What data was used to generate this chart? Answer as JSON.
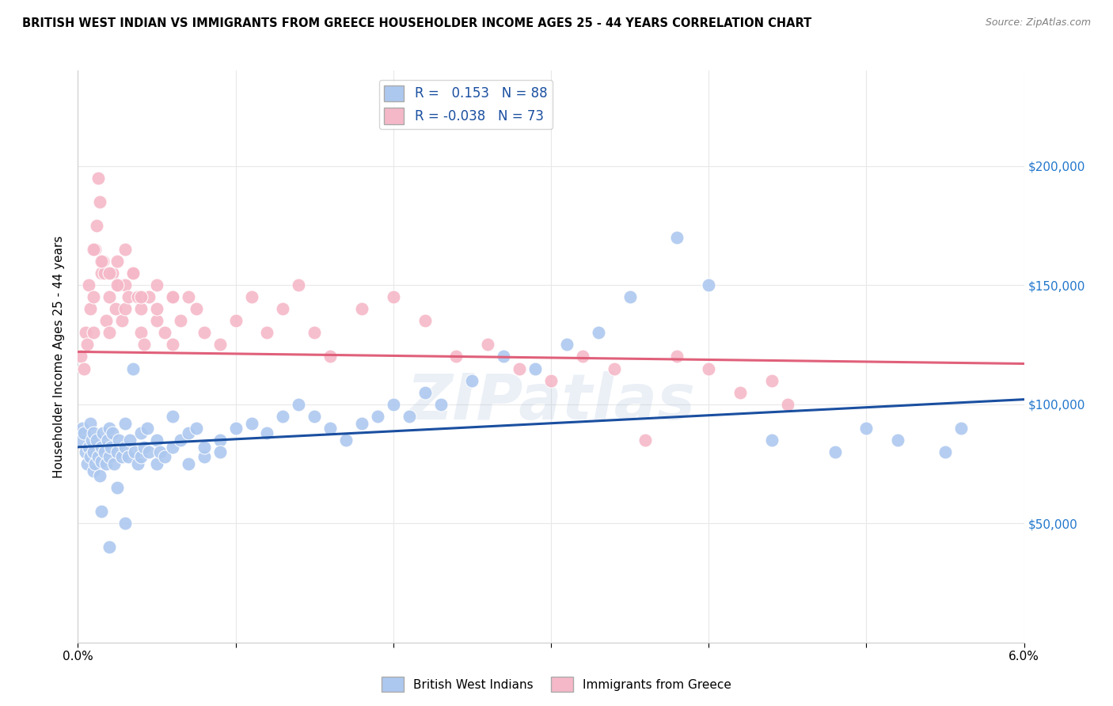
{
  "title": "BRITISH WEST INDIAN VS IMMIGRANTS FROM GREECE HOUSEHOLDER INCOME AGES 25 - 44 YEARS CORRELATION CHART",
  "source": "Source: ZipAtlas.com",
  "ylabel": "Householder Income Ages 25 - 44 years",
  "xlim": [
    0.0,
    0.06
  ],
  "ylim": [
    0,
    240000
  ],
  "blue_R": 0.153,
  "blue_N": 88,
  "pink_R": -0.038,
  "pink_N": 73,
  "blue_color": "#adc8ef",
  "pink_color": "#f5b8c8",
  "blue_line_color": "#1a4fa0",
  "pink_line_color": "#e0607a",
  "legend_label_blue": "British West Indians",
  "legend_label_pink": "Immigrants from Greece",
  "watermark": "ZIPatlas",
  "background_color": "#ffffff",
  "grid_color": "#e8e8e8",
  "blue_x": [
    0.0002,
    0.0003,
    0.0004,
    0.0005,
    0.0006,
    0.0007,
    0.0008,
    0.0008,
    0.0009,
    0.001,
    0.001,
    0.001,
    0.0011,
    0.0012,
    0.0013,
    0.0014,
    0.0015,
    0.0015,
    0.0016,
    0.0017,
    0.0018,
    0.0019,
    0.002,
    0.002,
    0.0021,
    0.0022,
    0.0023,
    0.0025,
    0.0026,
    0.0028,
    0.003,
    0.003,
    0.0032,
    0.0033,
    0.0035,
    0.0036,
    0.0038,
    0.004,
    0.004,
    0.0042,
    0.0044,
    0.0045,
    0.005,
    0.005,
    0.0052,
    0.0055,
    0.006,
    0.006,
    0.0065,
    0.007,
    0.007,
    0.0075,
    0.008,
    0.008,
    0.009,
    0.009,
    0.01,
    0.011,
    0.012,
    0.013,
    0.014,
    0.015,
    0.016,
    0.017,
    0.018,
    0.019,
    0.02,
    0.021,
    0.022,
    0.023,
    0.025,
    0.027,
    0.029,
    0.031,
    0.033,
    0.035,
    0.038,
    0.04,
    0.044,
    0.048,
    0.05,
    0.052,
    0.055,
    0.056,
    0.0015,
    0.002,
    0.0025,
    0.003
  ],
  "blue_y": [
    85000,
    90000,
    88000,
    80000,
    75000,
    82000,
    92000,
    78000,
    85000,
    88000,
    80000,
    72000,
    75000,
    85000,
    78000,
    70000,
    82000,
    76000,
    88000,
    80000,
    75000,
    85000,
    90000,
    78000,
    82000,
    88000,
    75000,
    80000,
    85000,
    78000,
    92000,
    82000,
    78000,
    85000,
    115000,
    80000,
    75000,
    88000,
    78000,
    82000,
    90000,
    80000,
    75000,
    85000,
    80000,
    78000,
    95000,
    82000,
    85000,
    88000,
    75000,
    90000,
    78000,
    82000,
    85000,
    80000,
    90000,
    92000,
    88000,
    95000,
    100000,
    95000,
    90000,
    85000,
    92000,
    95000,
    100000,
    95000,
    105000,
    100000,
    110000,
    120000,
    115000,
    125000,
    130000,
    145000,
    170000,
    150000,
    85000,
    80000,
    90000,
    85000,
    80000,
    90000,
    55000,
    40000,
    65000,
    50000
  ],
  "pink_x": [
    0.0002,
    0.0004,
    0.0005,
    0.0006,
    0.0007,
    0.0008,
    0.001,
    0.001,
    0.0011,
    0.0012,
    0.0013,
    0.0014,
    0.0015,
    0.0016,
    0.0017,
    0.0018,
    0.002,
    0.002,
    0.0022,
    0.0024,
    0.0025,
    0.0026,
    0.0028,
    0.003,
    0.003,
    0.0032,
    0.0035,
    0.0038,
    0.004,
    0.004,
    0.0042,
    0.0045,
    0.005,
    0.005,
    0.0055,
    0.006,
    0.006,
    0.0065,
    0.007,
    0.0075,
    0.008,
    0.009,
    0.01,
    0.011,
    0.012,
    0.013,
    0.014,
    0.015,
    0.016,
    0.018,
    0.02,
    0.022,
    0.024,
    0.026,
    0.028,
    0.03,
    0.032,
    0.034,
    0.036,
    0.038,
    0.04,
    0.042,
    0.044,
    0.045,
    0.001,
    0.0015,
    0.002,
    0.0025,
    0.003,
    0.0035,
    0.004,
    0.005,
    0.006
  ],
  "pink_y": [
    120000,
    115000,
    130000,
    125000,
    150000,
    140000,
    145000,
    130000,
    165000,
    175000,
    195000,
    185000,
    155000,
    160000,
    155000,
    135000,
    145000,
    130000,
    155000,
    140000,
    160000,
    150000,
    135000,
    150000,
    140000,
    145000,
    155000,
    145000,
    140000,
    130000,
    125000,
    145000,
    135000,
    140000,
    130000,
    145000,
    125000,
    135000,
    145000,
    140000,
    130000,
    125000,
    135000,
    145000,
    130000,
    140000,
    150000,
    130000,
    120000,
    140000,
    145000,
    135000,
    120000,
    125000,
    115000,
    110000,
    120000,
    115000,
    85000,
    120000,
    115000,
    105000,
    110000,
    100000,
    165000,
    160000,
    155000,
    150000,
    165000,
    155000,
    145000,
    150000,
    145000
  ]
}
